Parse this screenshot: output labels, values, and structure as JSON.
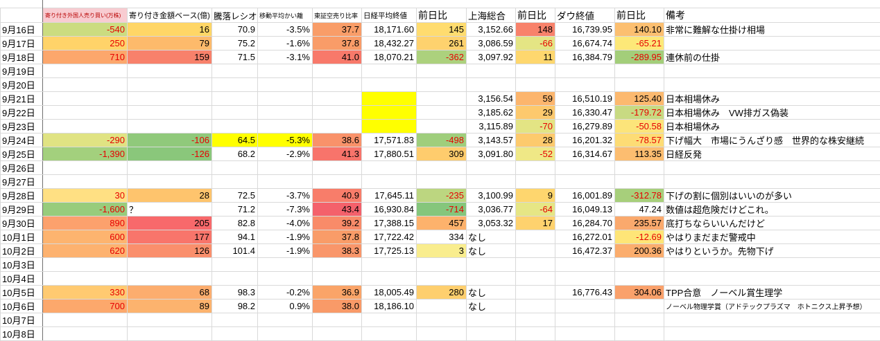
{
  "colors": {
    "negative_text": "#e60000",
    "header_foreign_bg": "#f8ccd1",
    "header_foreign_text": "#b80000",
    "highlight_yellow": "#ffff00",
    "gridline": "#d9d9d9",
    "scale_red": "#f8696b",
    "scale_yellow": "#ffeb84",
    "scale_green": "#63be7b"
  },
  "table": {
    "headers": {
      "foreign": "寄り付き外国人売り買い(万株)",
      "amount": "寄り付き金額ベース(億)",
      "ratio": "騰落レシオ",
      "ma_div": "移動平均かい離",
      "short_ratio": "東証空売り比率",
      "nikkei_close": "日経平均終値",
      "nikkei_chg": "前日比",
      "shanghai": "上海総合",
      "shanghai_chg": "前日比",
      "dow_close": "ダウ終値",
      "dow_chg": "前日比",
      "remarks": "備考"
    },
    "rows": [
      {
        "date": "9月16日",
        "cells": {
          "b": {
            "v": "-540",
            "bg": "#cbdc80",
            "r": true
          },
          "c": {
            "v": "16",
            "bg": "#ffd666"
          },
          "d": {
            "v": "70.9"
          },
          "e": {
            "v": "-3.5%"
          },
          "f": {
            "v": "37.7",
            "bg": "#f99d68"
          },
          "g": {
            "v": "18,171.60"
          },
          "h": {
            "v": "145",
            "bg": "#ffdc6f"
          },
          "i": {
            "v": "3,152.66"
          },
          "j": {
            "v": "148",
            "bg": "#f8826b"
          },
          "k": {
            "v": "16,739.95"
          },
          "l": {
            "v": "140.10",
            "bg": "#fcbf70"
          },
          "m": {
            "v": "非常に難解な仕掛け相場",
            "a": "l"
          }
        }
      },
      {
        "date": "9月17日",
        "cells": {
          "b": {
            "v": "250",
            "bg": "#ffd369",
            "r": true
          },
          "c": {
            "v": "79",
            "bg": "#fdba6b"
          },
          "d": {
            "v": "75.2"
          },
          "e": {
            "v": "-1.6%"
          },
          "f": {
            "v": "37.8",
            "bg": "#f99c68"
          },
          "g": {
            "v": "18,432.27"
          },
          "h": {
            "v": "261",
            "bg": "#fed26e"
          },
          "i": {
            "v": "3,086.59"
          },
          "j": {
            "v": "-66",
            "bg": "#e4e584",
            "r": true
          },
          "k": {
            "v": "16,674.74"
          },
          "l": {
            "v": "-65.21",
            "bg": "#fde878",
            "r": true
          }
        }
      },
      {
        "date": "9月18日",
        "cells": {
          "b": {
            "v": "710",
            "bg": "#fca76c",
            "r": true
          },
          "c": {
            "v": "159",
            "bg": "#f8816b"
          },
          "d": {
            "v": "71.5"
          },
          "e": {
            "v": "-3.1%"
          },
          "f": {
            "v": "41.0",
            "bg": "#f8796a"
          },
          "g": {
            "v": "18,070.21"
          },
          "h": {
            "v": "-362",
            "bg": "#acd17d",
            "r": true
          },
          "i": {
            "v": "3,097.92"
          },
          "j": {
            "v": "11",
            "bg": "#fed76e"
          },
          "k": {
            "v": "16,384.79"
          },
          "l": {
            "v": "-289.95",
            "bg": "#a3ce7a",
            "r": true
          },
          "m": {
            "v": "連休前の仕掛",
            "a": "l"
          }
        }
      },
      {
        "date": "9月19日",
        "cells": {}
      },
      {
        "date": "9月20日",
        "cells": {}
      },
      {
        "date": "9月21日",
        "cells": {
          "g": {
            "bg": "#ffff00"
          },
          "i": {
            "v": "3,156.54"
          },
          "j": {
            "v": "59",
            "bg": "#fcb56d"
          },
          "k": {
            "v": "16,510.19"
          },
          "l": {
            "v": "125.40",
            "bg": "#fcb96f"
          },
          "m": {
            "v": "日本相場休み",
            "a": "l"
          }
        }
      },
      {
        "date": "9月22日",
        "cells": {
          "g": {
            "bg": "#ffff00"
          },
          "i": {
            "v": "3,185.62"
          },
          "j": {
            "v": "29",
            "bg": "#fdc96d"
          },
          "k": {
            "v": "16,330.47"
          },
          "l": {
            "v": "-179.72",
            "bg": "#c8da82",
            "r": true
          },
          "m": {
            "v": "日本相場休み　VW排ガス偽装",
            "a": "l"
          }
        }
      },
      {
        "date": "9月23日",
        "cells": {
          "g": {
            "bg": "#ffff00"
          },
          "i": {
            "v": "3,115.89"
          },
          "j": {
            "v": "-70",
            "bg": "#e3e484",
            "r": true
          },
          "k": {
            "v": "16,279.89"
          },
          "l": {
            "v": "-50.58",
            "bg": "#fce47a",
            "r": true
          },
          "m": {
            "v": "日本相場休み",
            "a": "l"
          }
        }
      },
      {
        "date": "9月24日",
        "cells": {
          "b": {
            "v": "-290",
            "bg": "#e0e383",
            "r": true
          },
          "c": {
            "v": "-106",
            "bg": "#90c97b",
            "r": true
          },
          "d": {
            "v": "64.5",
            "bg": "#ffff00"
          },
          "e": {
            "v": "-5.3%",
            "bg": "#ffff00"
          },
          "f": {
            "v": "38.6",
            "bg": "#f9926a"
          },
          "g": {
            "v": "17,571.83"
          },
          "h": {
            "v": "-498",
            "bg": "#9fce7c",
            "r": true
          },
          "i": {
            "v": "3,143.57"
          },
          "j": {
            "v": "28",
            "bg": "#fdca6d"
          },
          "k": {
            "v": "16,201.32"
          },
          "l": {
            "v": "-78.57",
            "bg": "#fddc75",
            "r": true
          },
          "m": {
            "v": "下げ幅大　市場にうんざり感　世界的な株安継続",
            "a": "l"
          }
        }
      },
      {
        "date": "9月25日",
        "cells": {
          "b": {
            "v": "-1,390",
            "bg": "#a3d07d",
            "r": true
          },
          "c": {
            "v": "-126",
            "bg": "#8ac77b",
            "r": true
          },
          "d": {
            "v": "68.2"
          },
          "e": {
            "v": "-2.9%"
          },
          "f": {
            "v": "41.3",
            "bg": "#f8746b"
          },
          "g": {
            "v": "17,880.51"
          },
          "h": {
            "v": "309",
            "bg": "#fecc6d"
          },
          "i": {
            "v": "3,091.80"
          },
          "j": {
            "v": "-52",
            "bg": "#efe886",
            "r": true
          },
          "k": {
            "v": "16,314.67"
          },
          "l": {
            "v": "113.35",
            "bg": "#fcbd70"
          },
          "m": {
            "v": "日経反発",
            "a": "l"
          }
        }
      },
      {
        "date": "9月26日",
        "cells": {}
      },
      {
        "date": "9月27日",
        "cells": {}
      },
      {
        "date": "9月28日",
        "cells": {
          "b": {
            "v": "30",
            "bg": "#ffe083",
            "r": true
          },
          "c": {
            "v": "28",
            "bg": "#fec46d"
          },
          "d": {
            "v": "72.5"
          },
          "e": {
            "v": "-3.7%"
          },
          "f": {
            "v": "40.9",
            "bg": "#f87d6a"
          },
          "g": {
            "v": "17,645.11"
          },
          "h": {
            "v": "-235",
            "bg": "#bcd680",
            "r": true
          },
          "i": {
            "v": "3,100.99"
          },
          "j": {
            "v": "9",
            "bg": "#fed66e"
          },
          "k": {
            "v": "16,001.89"
          },
          "l": {
            "v": "-312.78",
            "bg": "#a7cf7b",
            "r": true
          },
          "m": {
            "v": "下げの割に個別はいいのが多い",
            "a": "l"
          }
        }
      },
      {
        "date": "9月29日",
        "cells": {
          "b": {
            "v": "-1,600",
            "bg": "#98cc7c",
            "r": true
          },
          "c": {
            "v": "？",
            "a": "l"
          },
          "d": {
            "v": "71.2"
          },
          "e": {
            "v": "-7.3%"
          },
          "f": {
            "v": "43.4",
            "bg": "#f4616b"
          },
          "g": {
            "v": "16,930.84"
          },
          "h": {
            "v": "-714",
            "bg": "#85c67c",
            "r": true
          },
          "i": {
            "v": "3,036.77"
          },
          "j": {
            "v": "-64",
            "bg": "#e6e685",
            "r": true
          },
          "k": {
            "v": "16,049.13"
          },
          "l": {
            "v": "47.24"
          },
          "m": {
            "v": "数値は超危険だけどこれ。",
            "a": "l"
          }
        }
      },
      {
        "date": "9月30日",
        "cells": {
          "b": {
            "v": "890",
            "bg": "#fca16d",
            "r": true
          },
          "c": {
            "v": "205",
            "bg": "#f8696b"
          },
          "d": {
            "v": "82.8"
          },
          "e": {
            "v": "-4.0%"
          },
          "f": {
            "v": "39.2",
            "bg": "#f98b69"
          },
          "g": {
            "v": "17,388.15"
          },
          "h": {
            "v": "457",
            "bg": "#fdb26c"
          },
          "i": {
            "v": "3,053.32"
          },
          "j": {
            "v": "17",
            "bg": "#fed26e"
          },
          "k": {
            "v": "16,284.70"
          },
          "l": {
            "v": "235.57",
            "bg": "#faa96d"
          },
          "m": {
            "v": "底打ちならいいんだけど",
            "a": "l"
          }
        }
      },
      {
        "date": "10月1日",
        "cells": {
          "b": {
            "v": "600",
            "bg": "#fdb46f",
            "r": true
          },
          "c": {
            "v": "177",
            "bg": "#f8756b"
          },
          "d": {
            "v": "94.1"
          },
          "e": {
            "v": "-1.9%"
          },
          "f": {
            "v": "37.8",
            "bg": "#f99c68"
          },
          "g": {
            "v": "17,722.42"
          },
          "h": {
            "v": "334"
          },
          "i": {
            "v": "なし",
            "a": "l"
          },
          "k": {
            "v": "16,272.01"
          },
          "l": {
            "v": "-12.69",
            "bg": "#fee577",
            "r": true
          },
          "m": {
            "v": "やはりまだまだ警戒中",
            "a": "l"
          }
        }
      },
      {
        "date": "10月2日",
        "cells": {
          "b": {
            "v": "620",
            "bg": "#fdb26f",
            "r": true
          },
          "c": {
            "v": "126",
            "bg": "#fa8f6c"
          },
          "d": {
            "v": "101.4"
          },
          "e": {
            "v": "-1.9%"
          },
          "f": {
            "v": "38.3",
            "bg": "#f9966a"
          },
          "g": {
            "v": "17,725.13"
          },
          "h": {
            "v": "3",
            "bg": "#f9ed8e"
          },
          "i": {
            "v": "なし",
            "a": "l"
          },
          "k": {
            "v": "16,472.37"
          },
          "l": {
            "v": "200.36",
            "bg": "#fbad6d"
          },
          "m": {
            "v": "やはりというか。先物下げ",
            "a": "l"
          }
        }
      },
      {
        "date": "10月3日",
        "cells": {}
      },
      {
        "date": "10月4日",
        "cells": {}
      },
      {
        "date": "10月5日",
        "cells": {
          "b": {
            "v": "330",
            "bg": "#ffca71",
            "r": true
          },
          "c": {
            "v": "68",
            "bg": "#fcad6e"
          },
          "d": {
            "v": "98.3"
          },
          "e": {
            "v": "-0.2%"
          },
          "f": {
            "v": "36.9",
            "bg": "#faa468"
          },
          "g": {
            "v": "18,005.49"
          },
          "h": {
            "v": "280",
            "bg": "#fecf6e"
          },
          "i": {
            "v": "なし",
            "a": "l"
          },
          "k": {
            "v": "16,776.43"
          },
          "l": {
            "v": "304.06",
            "bg": "#faa16b"
          },
          "m": {
            "v": "TPP合意　ノーベル賞生理学",
            "a": "l"
          }
        }
      },
      {
        "date": "10月6日",
        "cells": {
          "b": {
            "v": "700",
            "bg": "#fca86c",
            "r": true
          },
          "c": {
            "v": "89",
            "bg": "#fcb36e"
          },
          "d": {
            "v": "98.2"
          },
          "e": {
            "v": "0.9%"
          },
          "f": {
            "v": "38.0",
            "bg": "#f99a68"
          },
          "g": {
            "v": "18,186.10"
          },
          "i": {
            "v": "なし",
            "a": "l"
          },
          "m": {
            "v": "ノーベル物理学賞（アドテックプラズマ　ホトニクス上昇予想）",
            "a": "l",
            "s": true
          }
        }
      },
      {
        "date": "10月7日",
        "cells": {}
      },
      {
        "date": "10月8日",
        "cells": {}
      }
    ]
  }
}
